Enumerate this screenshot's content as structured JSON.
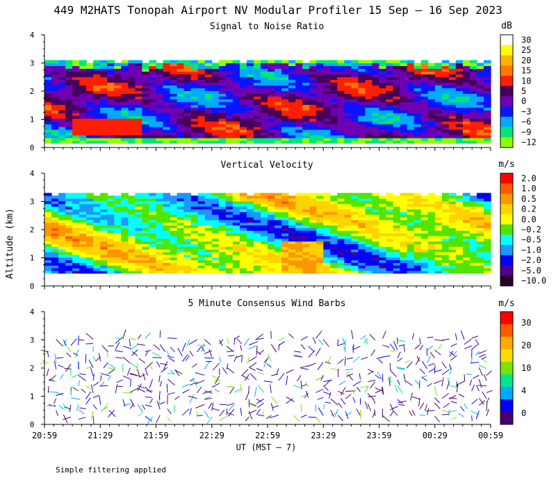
{
  "title": "449 M2HATS Tonopah Airport NV Modular Profiler 15 Sep – 16 Sep 2023",
  "footer_note": "Simple filtering applied",
  "y_axis_label": "Altitude (km)",
  "x_axis_label": "UT  (MST – 7)",
  "chart_data": [
    {
      "type": "heatmap",
      "title": "Signal to Noise Ratio",
      "colorbar_unit": "dB",
      "colorbar_ticks": [
        "30",
        "25",
        "20",
        "15",
        "10",
        "5",
        "0",
        "−3",
        "−6",
        "−9",
        "−12"
      ],
      "colorbar_colors": [
        "#ffffff",
        "#ffff00",
        "#ffb400",
        "#ff7800",
        "#ff1e00",
        "#46005a",
        "#6e00b4",
        "#0a14ff",
        "#00aaff",
        "#00e678",
        "#8cff00"
      ],
      "x_ticks": [
        "20:59",
        "21:29",
        "21:59",
        "22:29",
        "22:59",
        "23:29",
        "23:59",
        "00:29",
        "00:59"
      ],
      "y_ticks": [
        "0",
        "1",
        "2",
        "3",
        "4"
      ],
      "ylim": [
        0,
        4
      ],
      "ylabel": "Altitude (km)"
    },
    {
      "type": "heatmap",
      "title": "Vertical Velocity",
      "colorbar_unit": "m/s",
      "colorbar_ticks": [
        "2.0",
        "1.0",
        "0.5",
        "0.2",
        "0.0",
        "−0.2",
        "−0.5",
        "−1.0",
        "−2.0",
        "−5.0",
        "−10.0"
      ],
      "colorbar_colors": [
        "#ff0000",
        "#ff5a00",
        "#ff9600",
        "#ffd200",
        "#ffff00",
        "#50e600",
        "#00ffff",
        "#1e96ff",
        "#0000ff",
        "#50008c",
        "#280028"
      ],
      "x_ticks": [
        "20:59",
        "21:29",
        "21:59",
        "22:29",
        "22:59",
        "23:29",
        "23:59",
        "00:29",
        "00:59"
      ],
      "y_ticks": [
        "0",
        "1",
        "2",
        "3",
        "4"
      ],
      "ylim": [
        0,
        4
      ],
      "ylabel": "Altitude (km)"
    },
    {
      "type": "scatter",
      "title": "5 Minute Consensus Wind Barbs",
      "colorbar_unit": "m/s",
      "colorbar_ticks": [
        "30",
        "20",
        "10",
        "4",
        "0"
      ],
      "colorbar_colors": [
        "#ff0000",
        "#ff5a00",
        "#ffaa00",
        "#ffdc00",
        "#78e600",
        "#00e68c",
        "#00aaff",
        "#0000ff",
        "#46006e"
      ],
      "x_ticks": [
        "20:59",
        "21:29",
        "21:59",
        "22:29",
        "22:59",
        "23:29",
        "23:59",
        "00:29",
        "00:59"
      ],
      "y_ticks": [
        "0",
        "1",
        "2",
        "3",
        "4"
      ],
      "ylim": [
        0,
        4
      ],
      "ylabel": "Altitude (km)"
    }
  ]
}
